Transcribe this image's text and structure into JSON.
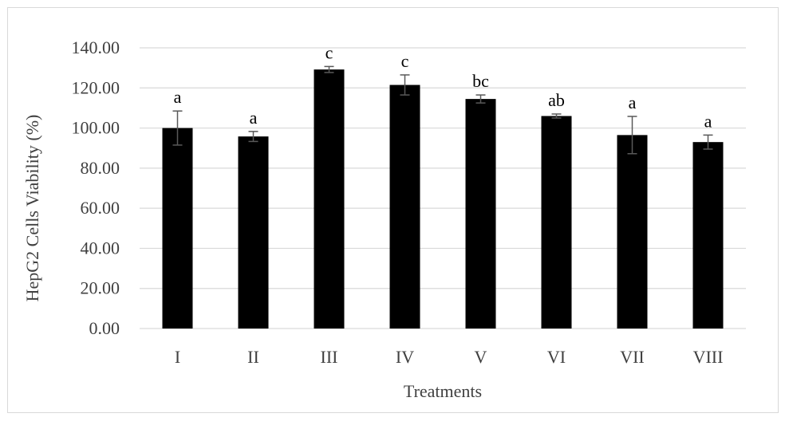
{
  "chart_data": {
    "type": "bar",
    "title": "",
    "xlabel": "Treatments",
    "ylabel": "HepG2 Cells Viability (%)",
    "ylim": [
      0,
      140
    ],
    "yticks": [
      "0.00",
      "20.00",
      "40.00",
      "60.00",
      "80.00",
      "100.00",
      "120.00",
      "140.00"
    ],
    "grid": true,
    "legend": "none",
    "categories": [
      "I",
      "II",
      "III",
      "IV",
      "V",
      "VI",
      "VII",
      "VIII"
    ],
    "series": [
      {
        "values": [
          100.0,
          95.8,
          129.2,
          121.5,
          114.5,
          106.0,
          96.5,
          93.0
        ],
        "errors": [
          8.5,
          2.5,
          1.5,
          5.0,
          2.0,
          1.0,
          9.3,
          3.5
        ],
        "significance": [
          "a",
          "a",
          "c",
          "c",
          "bc",
          "ab",
          "a",
          "a"
        ]
      }
    ],
    "colors": {
      "bar": "#000000",
      "grid": "#d9d9d9",
      "error": "#595959",
      "text": "#404040"
    }
  }
}
